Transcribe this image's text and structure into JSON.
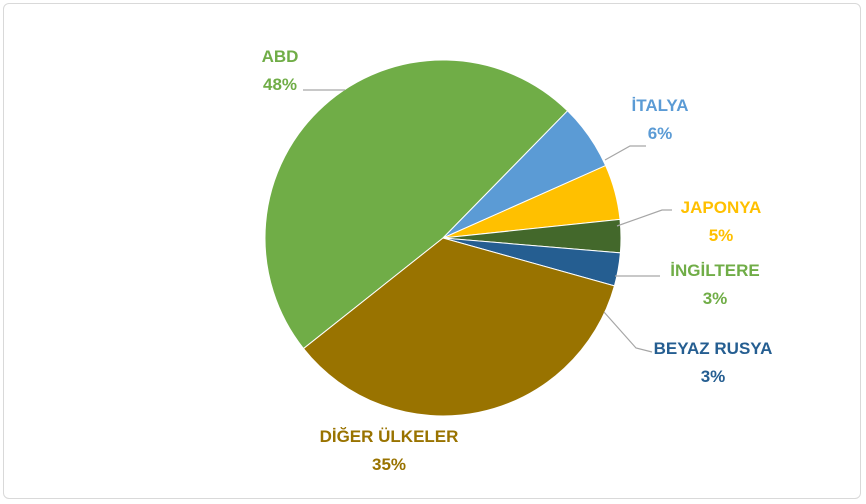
{
  "chart_data": {
    "type": "pie",
    "title": "",
    "slices": [
      {
        "name": "ABD",
        "value": 48,
        "label": "48%",
        "color": "#70ad47"
      },
      {
        "name": "İTALYA",
        "value": 6,
        "label": "6%",
        "color": "#5b9bd5"
      },
      {
        "name": "JAPONYA",
        "value": 5,
        "label": "5%",
        "color": "#ffc000"
      },
      {
        "name": "İNGİLTERE",
        "value": 3,
        "label": "3%",
        "color": "#43682b"
      },
      {
        "name": "BEYAZ RUSYA",
        "value": 3,
        "label": "3%",
        "color": "#255e91"
      },
      {
        "name": "DİĞER ÜLKELER",
        "value": 35,
        "label": "35%",
        "color": "#997300"
      }
    ],
    "label_colors": [
      "#70ad47",
      "#5b9bd5",
      "#ffc000",
      "#70ad47",
      "#255e91",
      "#997300"
    ],
    "legend": "none",
    "data_labels": "outside-with-leader-lines"
  }
}
